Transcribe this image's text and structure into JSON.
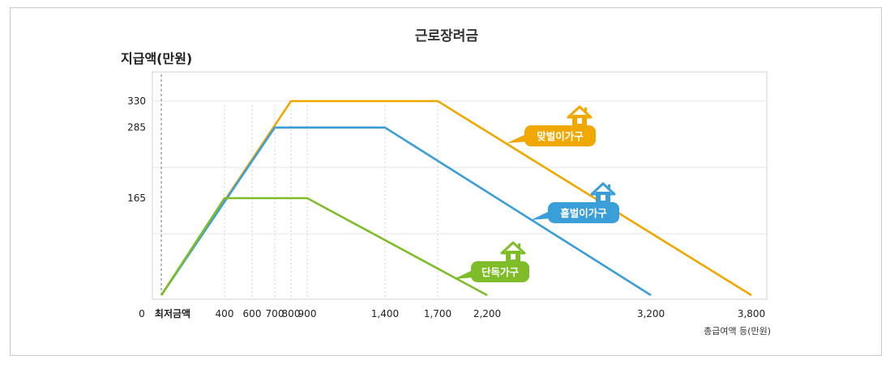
{
  "chart_data": {
    "type": "line",
    "title": "근로장려금",
    "ylabel": "지급액(만원)",
    "xlabel": "총급여액 등(만원)",
    "x_origin_label": "0",
    "x_start_label": "최저금액",
    "x_ticks": [
      {
        "value": 400,
        "label": "400"
      },
      {
        "value": 600,
        "label": "600"
      },
      {
        "value": 700,
        "label": "700"
      },
      {
        "value": 800,
        "label": "800"
      },
      {
        "value": 900,
        "label": "900"
      },
      {
        "value": 1400,
        "label": "1,400"
      },
      {
        "value": 1700,
        "label": "1,700"
      },
      {
        "value": 2200,
        "label": "2,200"
      },
      {
        "value": 3200,
        "label": "3,200"
      },
      {
        "value": 3800,
        "label": "3,800"
      }
    ],
    "y_ticks": [
      {
        "value": 165,
        "label": "165"
      },
      {
        "value": 285,
        "label": "285"
      },
      {
        "value": 330,
        "label": "330"
      }
    ],
    "ylim": [
      0,
      330
    ],
    "series": [
      {
        "name": "맞벌이가구",
        "color": "#f0a800",
        "points": [
          [
            0,
            0
          ],
          [
            800,
            330
          ],
          [
            1700,
            330
          ],
          [
            3800,
            0
          ]
        ]
      },
      {
        "name": "홑벌이가구",
        "color": "#3a9fd8",
        "points": [
          [
            0,
            0
          ],
          [
            700,
            285
          ],
          [
            1400,
            285
          ],
          [
            3200,
            0
          ]
        ]
      },
      {
        "name": "단독가구",
        "color": "#7fbd28",
        "points": [
          [
            0,
            0
          ],
          [
            400,
            165
          ],
          [
            900,
            165
          ],
          [
            2200,
            0
          ]
        ]
      }
    ]
  }
}
